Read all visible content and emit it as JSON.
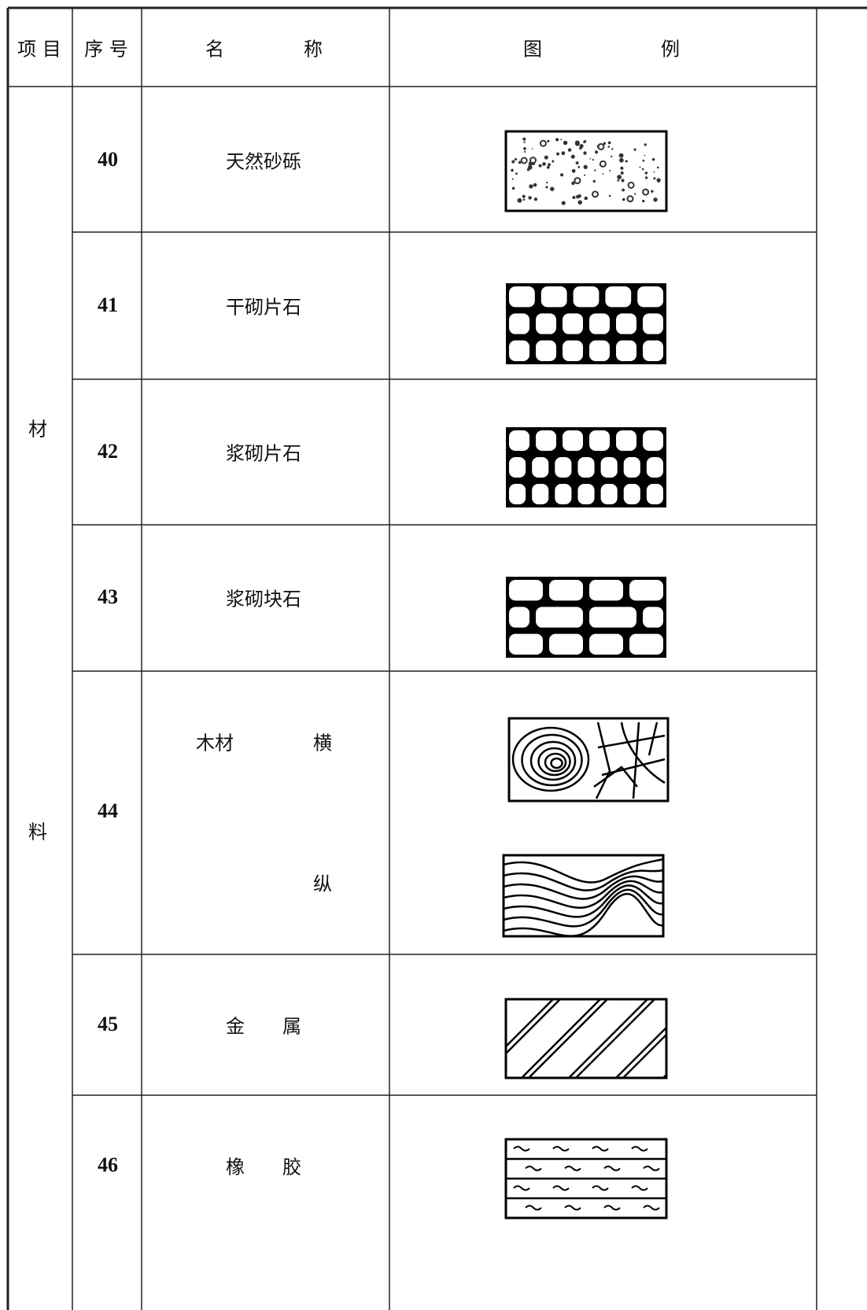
{
  "header": {
    "item": "项 目",
    "number": "序 号",
    "name": [
      "名",
      "称"
    ],
    "legend": [
      "图",
      "例"
    ]
  },
  "category": [
    "材",
    "料"
  ],
  "rows": [
    {
      "number": "40",
      "name": "天然砂砾"
    },
    {
      "number": "41",
      "name": "干砌片石"
    },
    {
      "number": "42",
      "name": "浆砌片石"
    },
    {
      "number": "43",
      "name": "浆砌块石"
    },
    {
      "number": "44",
      "name": "木材",
      "sub": [
        "横",
        "纵"
      ]
    },
    {
      "number": "45",
      "name": "金　　属"
    },
    {
      "number": "46",
      "name": "橡　　胶"
    }
  ]
}
